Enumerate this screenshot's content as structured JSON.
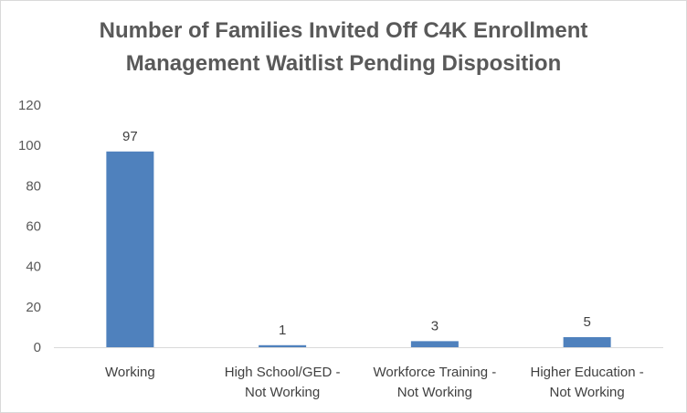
{
  "chart_data": {
    "type": "bar",
    "title_lines": [
      "Number of Families Invited Off C4K Enrollment",
      "Management Waitlist Pending Disposition"
    ],
    "categories": [
      [
        "Working"
      ],
      [
        "High School/GED -",
        "Not Working"
      ],
      [
        "Workforce Training -",
        "Not Working"
      ],
      [
        "Higher Education -",
        "Not Working"
      ]
    ],
    "values": [
      97,
      1,
      3,
      5
    ],
    "data_labels": [
      "97",
      "1",
      "3",
      "5"
    ],
    "ylim": [
      0,
      120
    ],
    "yticks": [
      0,
      20,
      40,
      60,
      80,
      100,
      120
    ],
    "ytick_labels": [
      "0",
      "20",
      "40",
      "60",
      "80",
      "100",
      "120"
    ],
    "grid": false,
    "legend": "none",
    "bar_color": "#4f81bd",
    "axis_color": "#d9d9d9"
  }
}
